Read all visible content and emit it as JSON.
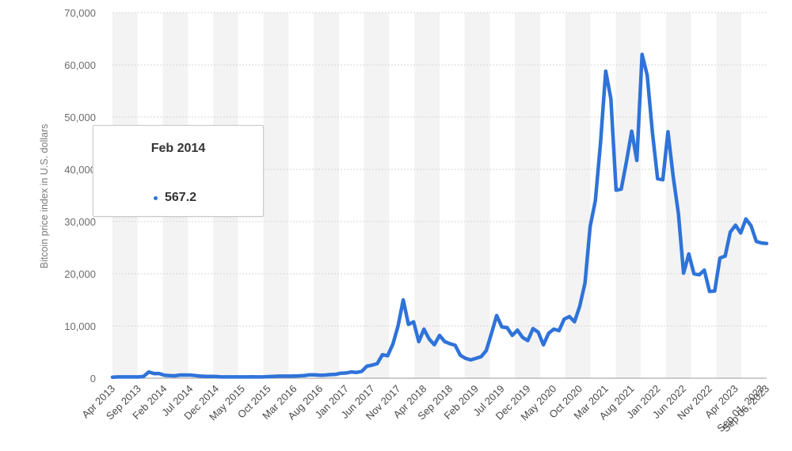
{
  "chart_data": {
    "type": "line",
    "title": "",
    "xlabel": "",
    "ylabel": "Bitcoin price index in U.S. dollars",
    "ylim": [
      0,
      70000
    ],
    "yticks": [
      0,
      10000,
      20000,
      30000,
      40000,
      50000,
      60000,
      70000
    ],
    "ytick_labels": [
      "0",
      "10,000",
      "20,000",
      "30,000",
      "40,000",
      "50,000",
      "60,000",
      "70,000"
    ],
    "xtick_labels": [
      "Apr 2013",
      "Sep 2013",
      "Feb 2014",
      "Jul 2014",
      "Dec 2014",
      "May 2015",
      "Oct 2015",
      "Mar 2016",
      "Aug 2016",
      "Jan 2017",
      "Jun 2017",
      "Nov 2017",
      "Apr 2018",
      "Sep 2018",
      "Feb 2019",
      "Jul 2019",
      "Dec 2019",
      "May 2020",
      "Oct 2020",
      "Mar 2021",
      "Aug 2021",
      "Jan 2022",
      "Jun 2022",
      "Nov 2022",
      "Apr 2023",
      "Sep 01, 2023",
      "Sep 06, 2023"
    ],
    "xtick_index": [
      0,
      5,
      10,
      15,
      20,
      25,
      30,
      35,
      40,
      45,
      50,
      55,
      60,
      65,
      70,
      75,
      80,
      85,
      90,
      95,
      100,
      105,
      110,
      115,
      120,
      125,
      126
    ],
    "grid": true,
    "series": [
      {
        "name": "",
        "color": "#2f73d9",
        "x": [
          "Apr 2013",
          "May 2013",
          "Jun 2013",
          "Jul 2013",
          "Aug 2013",
          "Sep 2013",
          "Oct 2013",
          "Nov 2013",
          "Dec 2013",
          "Jan 2014",
          "Feb 2014",
          "Mar 2014",
          "Apr 2014",
          "May 2014",
          "Jun 2014",
          "Jul 2014",
          "Aug 2014",
          "Sep 2014",
          "Oct 2014",
          "Nov 2014",
          "Dec 2014",
          "Jan 2015",
          "Feb 2015",
          "Mar 2015",
          "Apr 2015",
          "May 2015",
          "Jun 2015",
          "Jul 2015",
          "Aug 2015",
          "Sep 2015",
          "Oct 2015",
          "Nov 2015",
          "Dec 2015",
          "Jan 2016",
          "Feb 2016",
          "Mar 2016",
          "Apr 2016",
          "May 2016",
          "Jun 2016",
          "Jul 2016",
          "Aug 2016",
          "Sep 2016",
          "Oct 2016",
          "Nov 2016",
          "Dec 2016",
          "Jan 2017",
          "Feb 2017",
          "Mar 2017",
          "Apr 2017",
          "May 2017",
          "Jun 2017",
          "Jul 2017",
          "Aug 2017",
          "Sep 2017",
          "Oct 2017",
          "Nov 2017",
          "Dec 2017",
          "Jan 2018",
          "Feb 2018",
          "Mar 2018",
          "Apr 2018",
          "May 2018",
          "Jun 2018",
          "Jul 2018",
          "Aug 2018",
          "Sep 2018",
          "Oct 2018",
          "Nov 2018",
          "Dec 2018",
          "Jan 2019",
          "Feb 2019",
          "Mar 2019",
          "Apr 2019",
          "May 2019",
          "Jun 2019",
          "Jul 2019",
          "Aug 2019",
          "Sep 2019",
          "Oct 2019",
          "Nov 2019",
          "Dec 2019",
          "Jan 2020",
          "Feb 2020",
          "Mar 2020",
          "Apr 2020",
          "May 2020",
          "Jun 2020",
          "Jul 2020",
          "Aug 2020",
          "Sep 2020",
          "Oct 2020",
          "Nov 2020",
          "Dec 2020",
          "Jan 2021",
          "Feb 2021",
          "Mar 2021",
          "Apr 2021",
          "May 2021",
          "Jun 2021",
          "Jul 2021",
          "Aug 2021",
          "Sep 2021",
          "Oct 2021",
          "Nov 2021",
          "Dec 2021",
          "Jan 2022",
          "Feb 2022",
          "Mar 2022",
          "Apr 2022",
          "May 2022",
          "Jun 2022",
          "Jul 2022",
          "Aug 2022",
          "Sep 2022",
          "Oct 2022",
          "Nov 2022",
          "Dec 2022",
          "Jan 2023",
          "Feb 2023",
          "Mar 2023",
          "Apr 2023",
          "May 2023",
          "Jun 2023",
          "Jul 2023",
          "Aug 2023",
          "Sep 01, 2023",
          "Sep 06, 2023"
        ],
        "values": [
          200,
          250,
          250,
          250,
          250,
          250,
          350,
          1200,
          900,
          900,
          567.2,
          500,
          450,
          600,
          600,
          600,
          500,
          400,
          350,
          350,
          320,
          250,
          250,
          250,
          250,
          250,
          250,
          280,
          250,
          250,
          300,
          350,
          400,
          400,
          400,
          420,
          450,
          520,
          650,
          650,
          580,
          600,
          700,
          750,
          950,
          1000,
          1200,
          1100,
          1300,
          2300,
          2500,
          2800,
          4500,
          4300,
          6500,
          10000,
          15000,
          10300,
          10800,
          7000,
          9400,
          7500,
          6400,
          8200,
          7000,
          6600,
          6300,
          4400,
          3800,
          3500,
          3800,
          4100,
          5300,
          8600,
          12000,
          9800,
          9700,
          8200,
          9200,
          7800,
          7200,
          9500,
          8800,
          6400,
          8600,
          9400,
          9100,
          11300,
          11800,
          10800,
          13800,
          18200,
          29000,
          34000,
          45000,
          58800,
          53500,
          36000,
          36200,
          41500,
          47300,
          41700,
          62000,
          58000,
          47000,
          38200,
          38000,
          47200,
          38600,
          31500,
          20100,
          23800,
          20000,
          19800,
          20700,
          16600,
          16700,
          23000,
          23400,
          28000,
          29300,
          27800,
          30500,
          29200,
          26200,
          25900,
          25800
        ]
      }
    ]
  },
  "tooltip": {
    "date": "Feb 2014",
    "value": "567.2",
    "dot_color": "#2f73d9"
  }
}
